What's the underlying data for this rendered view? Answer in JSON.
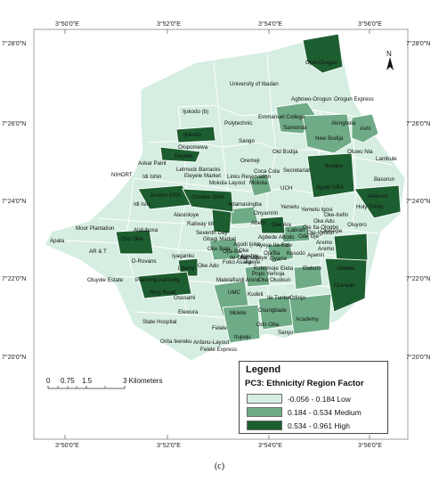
{
  "coords": {
    "top": [
      "3°50'0\"E",
      "3°52'0\"E",
      "3°54'0\"E",
      "3°56'0\"E"
    ],
    "bottom": [
      "3°50'0\"E",
      "3°52'0\"E",
      "3°54'0\"E",
      "3°56'0\"E"
    ],
    "left": [
      "7°28'0\"N",
      "7°26'0\"N",
      "7°24'0\"N",
      "7°22'0\"N",
      "7°20'0\"N"
    ],
    "right": [
      "7°28'0\"N",
      "7°26'0\"N",
      "7°24'0\"N",
      "7°22'0\"N",
      "7°20'0\"N"
    ]
  },
  "north_label": "N",
  "places": [
    "Ojoo-Orogun",
    "University of Ibadan",
    "Agbowo-Orogun",
    "Orogun Express",
    "Ijokodo (b)",
    "Emmanuel College",
    "Samonda",
    "Polytechnic",
    "Akingbola",
    "Ashi",
    "New Bodija",
    "Oluwo Nla",
    "Lambule",
    "Ijokodo",
    "Sango",
    "Olopomewa",
    "Old Bodija",
    "Oremeji",
    "Eleyele",
    "Askar Paint",
    "Letmuck Barracks",
    "Eleyele Market",
    "Links Reservation",
    "Coca Cola",
    "Secretariat",
    "Ikolaba",
    "Basorun",
    "Idi Ishin",
    "Mokola Layout",
    "Mokola",
    "NIHORT",
    "Agodi GRA",
    "Jericho GRA",
    "Onireke GRA",
    "Adamasingba",
    "Alekuso",
    "Holy Trinity",
    "UCH",
    "Idi Isin",
    "Onyarnrin",
    "Yemetu",
    "Yemetu Igosi",
    "Oke-Irefin",
    "Oke Adu",
    "Oluyoro",
    "Alesinloye",
    "Railway Idi",
    "Oke Are",
    "Labran",
    "Oje Ita-Ologbo",
    "Oje-Igosun",
    "Abebi",
    "Ode Oje",
    "Oke-Ape",
    "Moor Plantation",
    "Alalubosa",
    "Seventh Day",
    "Gbagi Market",
    "Agbede Adodo",
    "Aremo",
    "Apata",
    "Oke Bola",
    "Ayeye Ita-Bale",
    "Agodi Ijoko",
    "Ojia-Ba",
    "Oja'Ba",
    "Kosodo",
    "Oke",
    "Apenin",
    "Oranyan",
    "Ajeshie",
    "Oso Oke",
    "Ayeye",
    "Aremo",
    "AR & T",
    "Iyaganku",
    "Ayeye",
    "Oke Ado",
    "Foko Asaka",
    "Kobomoje",
    "Elekuro",
    "Adekile",
    "D-Rovans",
    "Ile Oba",
    "Akinlolu",
    "Popo Yemoja",
    "Eleta",
    "Oyarre",
    "Oluyole Estate",
    "Planning Authority",
    "Liberty",
    "Malelafia",
    "Idi Arere",
    "Oke Oluokun",
    "Ring Road",
    "Ososami",
    "UMC",
    "Kudeti",
    "Ile Tuntun",
    "Odinjo",
    "Molete",
    "Osungbade",
    "Academy",
    "Elewura",
    "State Hospital",
    "Odo Oba",
    "Sanyo",
    "Felele",
    "Orita Ikereku",
    "Itupeju",
    "Anfanu-Layout",
    "Felele Express"
  ],
  "scale": {
    "ticks": [
      "0",
      "0.75",
      "1.5",
      "3 Kilometers"
    ]
  },
  "legend": {
    "title": "Legend",
    "subtitle": "PC3: Ethnicity/ Region Factor",
    "classes": [
      {
        "label": "-0.056 - 0.184 Low",
        "color": "#d6eee2"
      },
      {
        "label": "0.184 - 0.534 Medium",
        "color": "#6fab86"
      },
      {
        "label": "0.534 - 0.961 High",
        "color": "#1d5e30"
      }
    ]
  },
  "colors": {
    "low": "#d6eee2",
    "medium": "#6fab86",
    "high": "#1d5e30",
    "border": "#ffffff"
  },
  "caption": "(c)"
}
